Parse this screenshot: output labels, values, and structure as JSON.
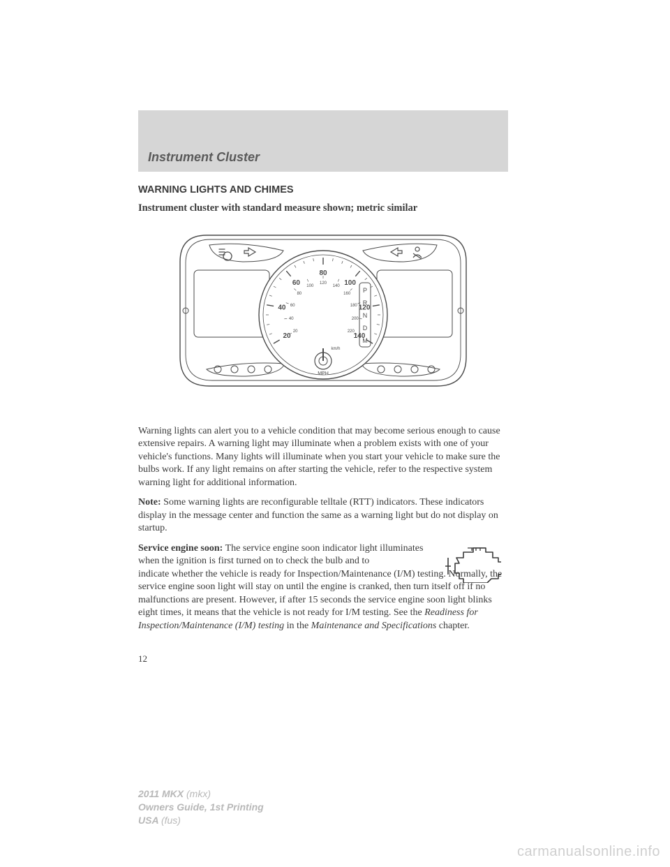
{
  "chapter": {
    "title": "Instrument Cluster"
  },
  "heading": "WARNING LIGHTS AND CHIMES",
  "subheading": "Instrument cluster with standard measure shown; metric similar",
  "cluster": {
    "type": "diagram",
    "stroke": "#4a4a4a",
    "stroke_width": 1.4,
    "bg": "#ffffff",
    "speed_ticks_mph": [
      "20",
      "40",
      "60",
      "80",
      "100",
      "120",
      "140"
    ],
    "speed_ticks_kmh": [
      "20",
      "40",
      "60",
      "80",
      "100",
      "120",
      "140",
      "160",
      "180",
      "200",
      "220"
    ],
    "mph_label": "MPH",
    "kmh_label": "km/h",
    "gear_letters": [
      "P",
      "R",
      "N",
      "D",
      "M"
    ],
    "left_lower_icon_count": 4,
    "right_lower_icon_count": 4
  },
  "paragraphs": {
    "p1": "Warning lights can alert you to a vehicle condition that may become serious enough to cause extensive repairs. A warning light may illuminate when a problem exists with one of your vehicle's functions. Many lights will illuminate when you start your vehicle to make sure the bulbs work. If any light remains on after starting the vehicle, refer to the respective system warning light for additional information.",
    "p2_label": "Note:",
    "p2": " Some warning lights are reconfigurable telltale (RTT) indicators. These indicators display in the message center and function the same as a warning light but do not display on startup.",
    "p3_label": "Service engine soon:",
    "p3_a": " The service engine soon indicator light illuminates when the ignition is first turned on to check the bulb and to",
    "p3_b": "indicate whether the vehicle is ready for Inspection/Maintenance (I/M) testing. Normally, the service engine soon light will stay on until the engine is cranked, then turn itself off if no malfunctions are present. However, if after 15 seconds the service engine soon light blinks eight times, it means that the vehicle is not ready for I/M testing. See the ",
    "p3_italic1": "Readiness for Inspection/Maintenance (I/M) testing",
    "p3_c": " in the ",
    "p3_italic2": "Maintenance and Specifications",
    "p3_d": " chapter."
  },
  "engine_icon": {
    "stroke": "#3a3a3a",
    "stroke_width": 1.6
  },
  "page_number": "12",
  "footer": {
    "l1_bold": "2011 MKX ",
    "l1": "(mkx)",
    "l2_bold": "Owners Guide, 1st Printing",
    "l3_bold": "USA ",
    "l3": "(fus)"
  },
  "watermark": "carmanualsonline.info",
  "colors": {
    "header_bg": "#d6d6d6",
    "text": "#3a3a3a",
    "footer_text": "#b8b8b8",
    "watermark": "#cfcfcf"
  }
}
